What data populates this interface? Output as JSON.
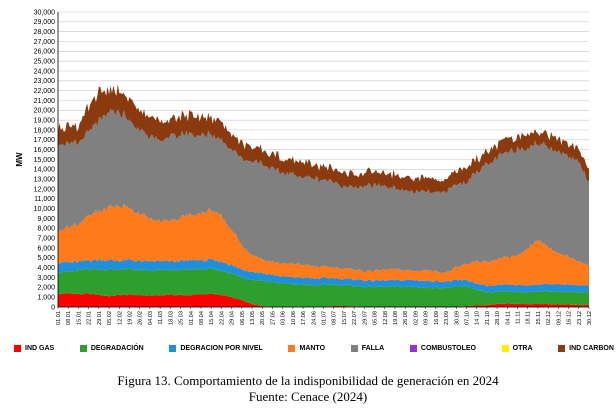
{
  "chart_data": {
    "type": "area",
    "stacked": true,
    "ylabel": "MW",
    "ylim": [
      0,
      30000
    ],
    "ytick_step": 1000,
    "ytick_labels": [
      "0",
      "1,000",
      "2,000",
      "3,000",
      "4,000",
      "5,000",
      "6,000",
      "7,000",
      "8,000",
      "9,000",
      "10,000",
      "11,000",
      "12,000",
      "13,000",
      "14,000",
      "15,000",
      "16,000",
      "17,000",
      "18,000",
      "19,000",
      "20,000",
      "21,000",
      "22,000",
      "23,000",
      "24,000",
      "25,000",
      "26,000",
      "27,000",
      "28,000",
      "29,000",
      "30,000"
    ],
    "grid": true,
    "legend_position": "bottom",
    "x": [
      "01.01",
      "08.01",
      "15.01",
      "22.01",
      "29.01",
      "05.02",
      "12.02",
      "19.02",
      "26.02",
      "04.03",
      "11.03",
      "18.03",
      "25.03",
      "01.04",
      "08.04",
      "15.04",
      "22.04",
      "29.04",
      "06.05",
      "13.05",
      "20.05",
      "27.05",
      "03.06",
      "10.06",
      "17.06",
      "24.06",
      "01.07",
      "08.07",
      "15.07",
      "22.07",
      "29.07",
      "05.08",
      "12.08",
      "19.08",
      "26.08",
      "02.09",
      "09.09",
      "16.09",
      "23.09",
      "30.09",
      "07.10",
      "14.10",
      "21.10",
      "28.10",
      "04.11",
      "11.11",
      "18.11",
      "25.11",
      "02.12",
      "09.12",
      "16.12",
      "23.12",
      "30.12"
    ],
    "series": [
      {
        "name": "IND GAS",
        "color": "#ff0000",
        "values": [
          1300,
          1400,
          1300,
          1350,
          1250,
          1100,
          1200,
          1250,
          1200,
          1150,
          1200,
          1250,
          1200,
          1200,
          1300,
          1350,
          1200,
          1000,
          700,
          300,
          100,
          50,
          0,
          0,
          0,
          0,
          50,
          100,
          100,
          80,
          50,
          50,
          50,
          50,
          50,
          50,
          50,
          50,
          50,
          50,
          100,
          150,
          200,
          300,
          350,
          300,
          300,
          300,
          300,
          250,
          250,
          200,
          200
        ]
      },
      {
        "name": "DEGRADACIÓN",
        "color": "#2e9e2e",
        "values": [
          2200,
          2200,
          2400,
          2500,
          2600,
          2700,
          2600,
          2600,
          2550,
          2500,
          2550,
          2500,
          2550,
          2600,
          2550,
          2500,
          2500,
          2400,
          2300,
          2500,
          2600,
          2500,
          2400,
          2300,
          2300,
          2200,
          2200,
          2200,
          2100,
          2100,
          2000,
          2000,
          2000,
          2000,
          2000,
          2000,
          1900,
          1950,
          1900,
          2000,
          2000,
          1600,
          1300,
          1200,
          1250,
          1200,
          1200,
          1300,
          1300,
          1300,
          1300,
          1300,
          1300
        ]
      },
      {
        "name": "DEGRACION POR NIVEL",
        "color": "#1f8fdc",
        "values": [
          1000,
          950,
          900,
          900,
          950,
          950,
          900,
          950,
          900,
          950,
          900,
          900,
          900,
          950,
          900,
          950,
          900,
          850,
          800,
          800,
          750,
          700,
          700,
          700,
          700,
          700,
          700,
          650,
          650,
          650,
          650,
          650,
          650,
          650,
          700,
          700,
          700,
          650,
          650,
          650,
          650,
          650,
          650,
          700,
          700,
          700,
          700,
          700,
          750,
          750,
          750,
          700,
          700
        ]
      },
      {
        "name": "MANTO",
        "color": "#ff7a1a",
        "values": [
          3200,
          3600,
          3800,
          4500,
          4900,
          5400,
          5600,
          5300,
          4800,
          4300,
          4000,
          4200,
          4400,
          4600,
          4800,
          5000,
          4600,
          3600,
          2500,
          1700,
          1400,
          1300,
          1300,
          1400,
          1300,
          1200,
          1150,
          1100,
          1050,
          1000,
          950,
          1000,
          1100,
          1100,
          1000,
          950,
          1100,
          1000,
          900,
          1300,
          1600,
          2300,
          2400,
          2600,
          2800,
          2900,
          3800,
          4500,
          3800,
          3200,
          2800,
          2500,
          2000
        ]
      },
      {
        "name": "FALLA",
        "color": "#808080",
        "values": [
          9000,
          8400,
          8300,
          8500,
          9200,
          9600,
          9600,
          8800,
          8600,
          8400,
          8100,
          8600,
          8400,
          8300,
          7900,
          7700,
          7700,
          8300,
          8800,
          9600,
          9800,
          9400,
          9200,
          9100,
          8900,
          9000,
          8800,
          8700,
          8400,
          8300,
          8600,
          8700,
          8500,
          8200,
          8100,
          8000,
          8000,
          7900,
          8300,
          8400,
          8300,
          9200,
          9800,
          10300,
          10600,
          10900,
          10300,
          9800,
          10300,
          10300,
          10200,
          10200,
          8500
        ]
      },
      {
        "name": "COMBUSTOLEO",
        "color": "#9b30d9",
        "values": [
          0,
          0,
          0,
          0,
          0,
          0,
          0,
          0,
          0,
          0,
          0,
          0,
          0,
          0,
          0,
          0,
          0,
          0,
          0,
          0,
          0,
          0,
          0,
          0,
          0,
          0,
          0,
          0,
          0,
          0,
          0,
          0,
          0,
          0,
          0,
          0,
          0,
          0,
          0,
          0,
          0,
          0,
          0,
          0,
          0,
          0,
          0,
          0,
          0,
          0,
          0,
          0,
          0
        ]
      },
      {
        "name": "OTRA",
        "color": "#ffee00",
        "values": [
          0,
          0,
          0,
          0,
          0,
          0,
          0,
          0,
          0,
          0,
          0,
          0,
          0,
          0,
          0,
          0,
          0,
          0,
          0,
          0,
          0,
          0,
          0,
          0,
          0,
          0,
          0,
          0,
          0,
          0,
          0,
          0,
          0,
          0,
          0,
          0,
          0,
          0,
          0,
          0,
          0,
          0,
          0,
          0,
          0,
          0,
          0,
          0,
          0,
          0,
          0,
          0,
          0
        ]
      },
      {
        "name": "IND CARBON",
        "color": "#8b3a0f",
        "values": [
          1800,
          1800,
          1700,
          2300,
          2700,
          2300,
          2100,
          2000,
          2000,
          1900,
          2000,
          1950,
          1900,
          1900,
          1850,
          1800,
          1700,
          1600,
          1500,
          1500,
          1450,
          1450,
          1450,
          1450,
          1400,
          1400,
          1350,
          1350,
          1350,
          1350,
          1350,
          1350,
          1350,
          1350,
          1350,
          1350,
          1350,
          1350,
          1350,
          1350,
          1350,
          1300,
          1300,
          1300,
          1300,
          1300,
          1300,
          1300,
          1300,
          1300,
          1300,
          1300,
          1300
        ]
      }
    ]
  },
  "caption": {
    "line1": "Figura 13. Comportamiento de la indisponibilidad de generación en 2024",
    "line2": "Fuente: Cenace (2024)"
  }
}
